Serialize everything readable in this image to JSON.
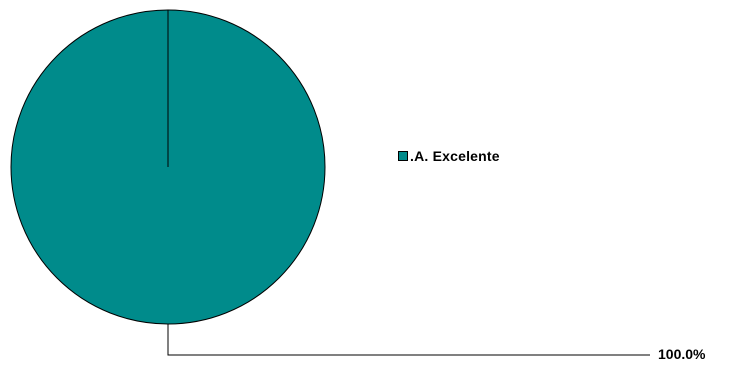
{
  "chart_data": {
    "type": "pie",
    "categories": [
      ".A. Excelente"
    ],
    "values": [
      100.0
    ],
    "data_labels": [
      "100.0%"
    ],
    "colors": [
      "#008B8B"
    ],
    "legend_position": "right"
  }
}
